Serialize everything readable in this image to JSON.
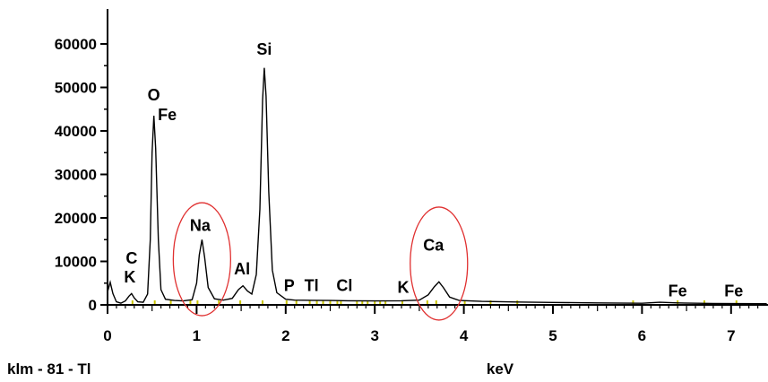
{
  "chart_data": {
    "type": "line",
    "title": "",
    "xlabel": "keV",
    "ylabel": "",
    "sample_label": "klm - 81 - Tl",
    "xlim": [
      0,
      7.4
    ],
    "ylim": [
      0,
      60000
    ],
    "x_ticks": [
      "0",
      "1",
      "2",
      "3",
      "4",
      "5",
      "6",
      "7"
    ],
    "y_ticks": [
      "0",
      "10000",
      "20000",
      "30000",
      "40000",
      "50000",
      "60000"
    ],
    "grid": false,
    "series": [
      {
        "points": [
          [
            0.0,
            3000
          ],
          [
            0.03,
            5200
          ],
          [
            0.06,
            2600
          ],
          [
            0.1,
            700
          ],
          [
            0.15,
            400
          ],
          [
            0.2,
            900
          ],
          [
            0.24,
            2000
          ],
          [
            0.27,
            2600
          ],
          [
            0.3,
            1600
          ],
          [
            0.34,
            700
          ],
          [
            0.4,
            600
          ],
          [
            0.45,
            2500
          ],
          [
            0.48,
            15000
          ],
          [
            0.5,
            35000
          ],
          [
            0.52,
            43500
          ],
          [
            0.54,
            36000
          ],
          [
            0.57,
            15000
          ],
          [
            0.6,
            3500
          ],
          [
            0.65,
            1300
          ],
          [
            0.75,
            1000
          ],
          [
            0.85,
            900
          ],
          [
            0.95,
            1200
          ],
          [
            1.0,
            5000
          ],
          [
            1.03,
            11500
          ],
          [
            1.06,
            15000
          ],
          [
            1.09,
            11000
          ],
          [
            1.13,
            4000
          ],
          [
            1.2,
            1400
          ],
          [
            1.3,
            1100
          ],
          [
            1.4,
            1500
          ],
          [
            1.47,
            3500
          ],
          [
            1.52,
            4400
          ],
          [
            1.57,
            3200
          ],
          [
            1.62,
            2500
          ],
          [
            1.67,
            7000
          ],
          [
            1.71,
            22000
          ],
          [
            1.74,
            47000
          ],
          [
            1.76,
            54500
          ],
          [
            1.78,
            48000
          ],
          [
            1.81,
            26000
          ],
          [
            1.85,
            8000
          ],
          [
            1.9,
            2800
          ],
          [
            2.0,
            1300
          ],
          [
            2.1,
            1100
          ],
          [
            2.3,
            1050
          ],
          [
            2.5,
            1000
          ],
          [
            2.7,
            950
          ],
          [
            3.0,
            900
          ],
          [
            3.3,
            950
          ],
          [
            3.5,
            1100
          ],
          [
            3.6,
            2300
          ],
          [
            3.67,
            4200
          ],
          [
            3.72,
            5300
          ],
          [
            3.77,
            4000
          ],
          [
            3.84,
            1800
          ],
          [
            3.95,
            1000
          ],
          [
            4.2,
            800
          ],
          [
            4.6,
            650
          ],
          [
            5.0,
            550
          ],
          [
            5.5,
            450
          ],
          [
            6.0,
            380
          ],
          [
            6.2,
            600
          ],
          [
            6.4,
            450
          ],
          [
            6.8,
            320
          ],
          [
            7.4,
            260
          ]
        ]
      }
    ],
    "annotations": [
      {
        "text": "O",
        "x": 0.52,
        "y": 47000
      },
      {
        "text": "Fe",
        "x": 0.67,
        "y": 42500
      },
      {
        "text": "Si",
        "x": 1.76,
        "y": 57500
      },
      {
        "text": "Na",
        "x": 1.04,
        "y": 17000
      },
      {
        "text": "C",
        "x": 0.27,
        "y": 9500
      },
      {
        "text": "K",
        "x": 0.25,
        "y": 5200
      },
      {
        "text": "Al",
        "x": 1.51,
        "y": 7000
      },
      {
        "text": "P",
        "x": 2.04,
        "y": 3200
      },
      {
        "text": "Tl",
        "x": 2.29,
        "y": 3200
      },
      {
        "text": "Cl",
        "x": 2.66,
        "y": 3200
      },
      {
        "text": "K",
        "x": 3.32,
        "y": 2800
      },
      {
        "text": "Ca",
        "x": 3.66,
        "y": 12500
      },
      {
        "text": "Fe",
        "x": 6.4,
        "y": 2000
      },
      {
        "text": "Fe",
        "x": 7.03,
        "y": 2000
      }
    ],
    "highlighted": [
      {
        "element": "Na",
        "x": 1.06,
        "y": 10500
      },
      {
        "element": "Ca",
        "x": 3.72,
        "y": 9500
      }
    ],
    "marker_positions_kev": [
      0.28,
      0.53,
      0.71,
      0.93,
      1.01,
      1.25,
      1.49,
      1.74,
      2.01,
      2.12,
      2.27,
      2.35,
      2.42,
      2.5,
      2.58,
      2.62,
      2.8,
      2.86,
      2.92,
      3.0,
      3.06,
      3.12,
      3.31,
      3.59,
      3.69,
      4.01,
      4.3,
      4.6,
      5.9,
      6.4,
      6.7,
      7.06
    ],
    "colors": {
      "line": "#000000",
      "highlight": "#e03030",
      "marker": "#c9c400",
      "axis": "#000000"
    }
  }
}
